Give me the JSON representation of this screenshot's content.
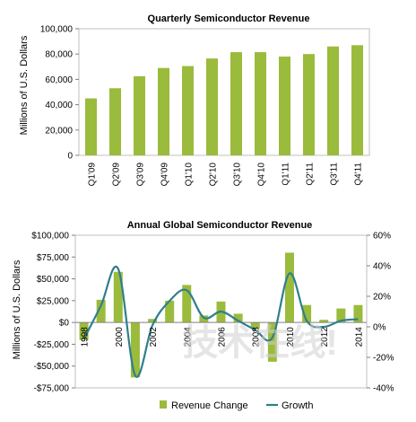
{
  "chart_data": [
    {
      "type": "bar",
      "title": "Quarterly Semiconductor Revenue",
      "ylabel": "Millions of U.S. Dollars",
      "xlabel": "",
      "categories": [
        "Q1'09",
        "Q2'09",
        "Q3'09",
        "Q4'09",
        "Q1'10",
        "Q2'10",
        "Q3'10",
        "Q4'10",
        "Q1'11",
        "Q2'11",
        "Q3'11",
        "Q4'11"
      ],
      "values": [
        45000,
        53000,
        62500,
        69000,
        70500,
        76500,
        81500,
        81500,
        78000,
        80000,
        86000,
        87000
      ],
      "ylim": [
        0,
        100000
      ],
      "yticks": [
        0,
        20000,
        40000,
        60000,
        80000,
        100000
      ],
      "ytick_labels": [
        "0",
        "20,000",
        "40,000",
        "60,000",
        "80,000",
        "100,000"
      ],
      "bar_color": "#9bbb3c",
      "grid": false
    },
    {
      "type": "bar+line",
      "title": "Annual Global Semiconductor Revenue",
      "ylabel": "Millions of U.S. Dollars",
      "x": [
        1998,
        1999,
        2000,
        2001,
        2002,
        2003,
        2004,
        2005,
        2006,
        2007,
        2008,
        2009,
        2010,
        2011,
        2012,
        2013,
        2014
      ],
      "xtick_labels": [
        "1998",
        "2000",
        "2002",
        "2004",
        "2006",
        "2008",
        "2010",
        "2012",
        "2014"
      ],
      "series": [
        {
          "name": "Revenue Change",
          "type": "bar",
          "axis": "left",
          "color": "#9bbb3c",
          "values": [
            -20000,
            26000,
            58000,
            -63000,
            4000,
            25000,
            43000,
            8000,
            24000,
            10000,
            -7000,
            -45000,
            80000,
            20000,
            3000,
            16000,
            20000
          ]
        },
        {
          "name": "Growth",
          "type": "line",
          "axis": "right",
          "color": "#2e7f8c",
          "values": [
            -8,
            14,
            38,
            -32,
            1,
            17,
            24,
            6,
            10,
            4,
            -2,
            -7,
            35,
            4,
            0,
            4,
            5
          ]
        }
      ],
      "ylim_left": [
        -75000,
        100000
      ],
      "yticks_left": [
        -75000,
        -50000,
        -25000,
        0,
        25000,
        50000,
        75000,
        100000
      ],
      "ytick_labels_left": [
        "-$75,000",
        "-$50,000",
        "-$25,000",
        "$0",
        "$25,000",
        "$50,000",
        "$75,000",
        "$100,000"
      ],
      "ylim_right": [
        -40,
        60
      ],
      "yticks_right": [
        -40,
        -20,
        0,
        20,
        40,
        60
      ],
      "ytick_labels_right": [
        "-40%",
        "-20%",
        "0%",
        "20%",
        "40%",
        "60%"
      ],
      "legend": {
        "position": "bottom",
        "entries": [
          "Revenue Change",
          "Growth"
        ]
      },
      "grid": false
    }
  ],
  "watermark": "技术在线!"
}
